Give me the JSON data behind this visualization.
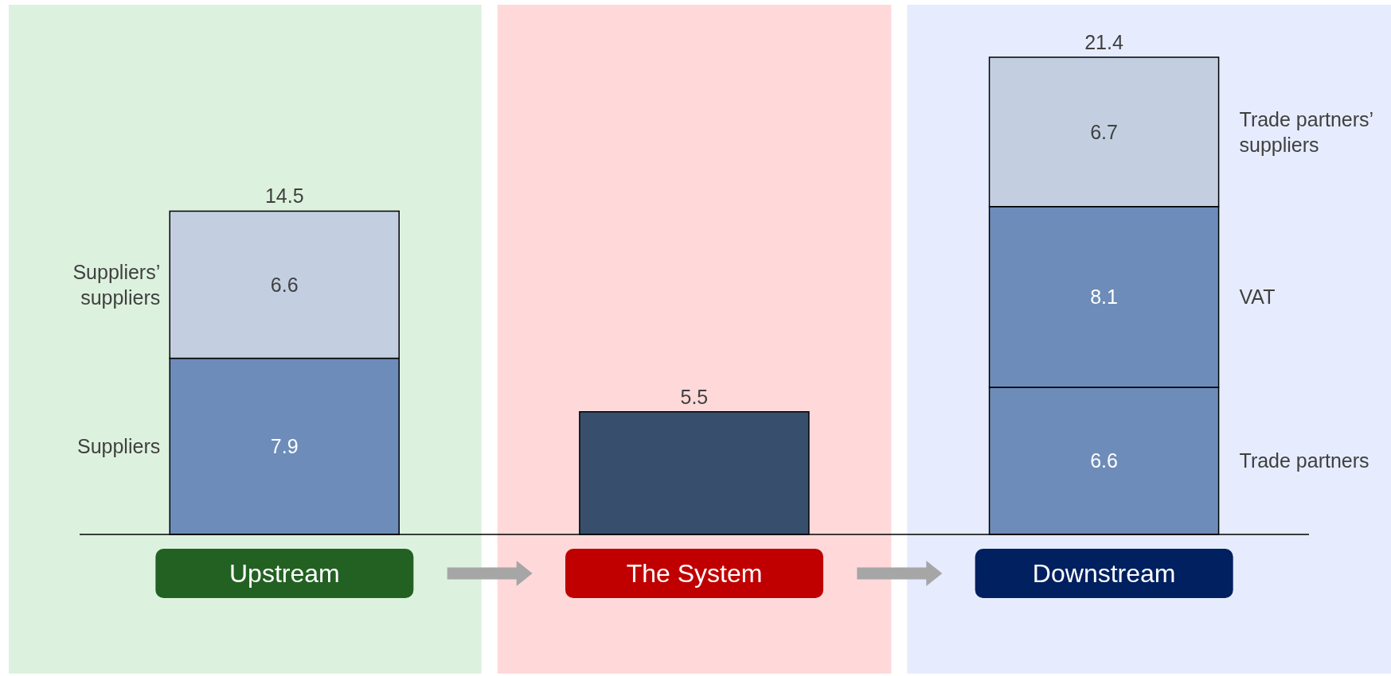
{
  "chart_data": {
    "type": "bar",
    "stacked": true,
    "categories": [
      "Upstream",
      "The System",
      "Downstream"
    ],
    "series": [
      {
        "name": "Suppliers",
        "color": "#6d8cb9",
        "values": [
          7.9,
          null,
          null
        ],
        "value_labels": [
          "7.9",
          null,
          null
        ]
      },
      {
        "name": "Suppliers’ suppliers",
        "color": "#c3cfe1",
        "values": [
          6.6,
          null,
          null
        ],
        "value_labels": [
          "6.6",
          null,
          null
        ]
      },
      {
        "color": "#384e6d",
        "values": [
          null,
          5.5,
          null
        ]
      },
      {
        "name": "Trade partners",
        "color": "#6d8cb9",
        "values": [
          null,
          null,
          6.6
        ],
        "value_labels": [
          null,
          null,
          "6.6"
        ]
      },
      {
        "name": "VAT",
        "color": "#6d8cb9",
        "values": [
          null,
          null,
          8.1
        ],
        "value_labels": [
          null,
          null,
          "8.1"
        ]
      },
      {
        "name": "Trade partners’ suppliers",
        "color": "#c3cfe1",
        "values": [
          null,
          null,
          6.7
        ],
        "value_labels": [
          null,
          null,
          "6.7"
        ]
      }
    ],
    "totals": [
      "14.5",
      "5.5",
      "21.4"
    ],
    "tick_labels": "x",
    "bands": [
      {
        "axis": "x",
        "from": "Upstream",
        "to": "Upstream",
        "color": "#ddf2de"
      },
      {
        "axis": "x",
        "from": "The System",
        "to": "The System",
        "color": "#ffd9d9"
      },
      {
        "axis": "x",
        "from": "Downstream",
        "to": "Downstream",
        "color": "#e6ecfd"
      }
    ]
  }
}
